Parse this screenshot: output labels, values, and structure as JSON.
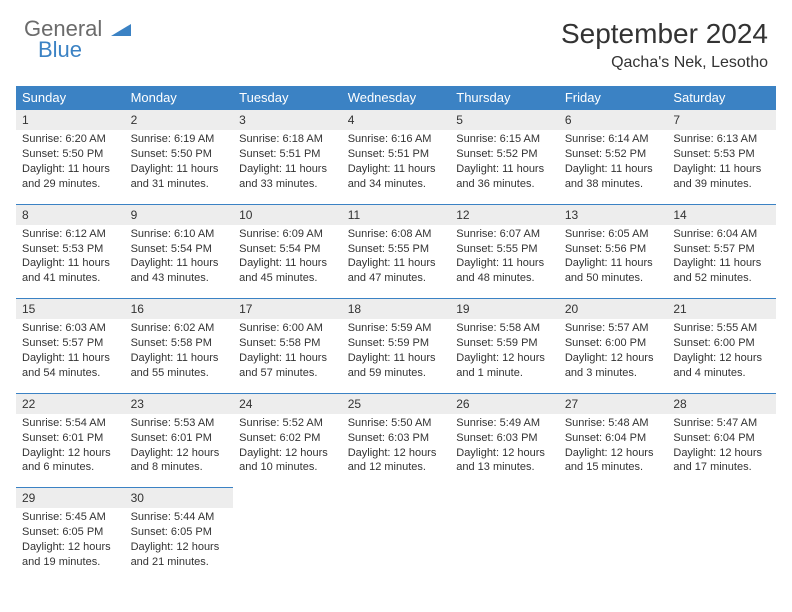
{
  "logo": {
    "text1": "General",
    "text2": "Blue"
  },
  "title": "September 2024",
  "location": "Qacha's Nek, Lesotho",
  "colors": {
    "header_bg": "#3b82c4",
    "header_text": "#ffffff",
    "daynum_bg": "#ededed",
    "text": "#333333",
    "logo_gray": "#6b6b6b",
    "logo_blue": "#3b82c4"
  },
  "weekdays": [
    "Sunday",
    "Monday",
    "Tuesday",
    "Wednesday",
    "Thursday",
    "Friday",
    "Saturday"
  ],
  "weeks": [
    [
      {
        "n": "1",
        "sr": "Sunrise: 6:20 AM",
        "ss": "Sunset: 5:50 PM",
        "d1": "Daylight: 11 hours",
        "d2": "and 29 minutes."
      },
      {
        "n": "2",
        "sr": "Sunrise: 6:19 AM",
        "ss": "Sunset: 5:50 PM",
        "d1": "Daylight: 11 hours",
        "d2": "and 31 minutes."
      },
      {
        "n": "3",
        "sr": "Sunrise: 6:18 AM",
        "ss": "Sunset: 5:51 PM",
        "d1": "Daylight: 11 hours",
        "d2": "and 33 minutes."
      },
      {
        "n": "4",
        "sr": "Sunrise: 6:16 AM",
        "ss": "Sunset: 5:51 PM",
        "d1": "Daylight: 11 hours",
        "d2": "and 34 minutes."
      },
      {
        "n": "5",
        "sr": "Sunrise: 6:15 AM",
        "ss": "Sunset: 5:52 PM",
        "d1": "Daylight: 11 hours",
        "d2": "and 36 minutes."
      },
      {
        "n": "6",
        "sr": "Sunrise: 6:14 AM",
        "ss": "Sunset: 5:52 PM",
        "d1": "Daylight: 11 hours",
        "d2": "and 38 minutes."
      },
      {
        "n": "7",
        "sr": "Sunrise: 6:13 AM",
        "ss": "Sunset: 5:53 PM",
        "d1": "Daylight: 11 hours",
        "d2": "and 39 minutes."
      }
    ],
    [
      {
        "n": "8",
        "sr": "Sunrise: 6:12 AM",
        "ss": "Sunset: 5:53 PM",
        "d1": "Daylight: 11 hours",
        "d2": "and 41 minutes."
      },
      {
        "n": "9",
        "sr": "Sunrise: 6:10 AM",
        "ss": "Sunset: 5:54 PM",
        "d1": "Daylight: 11 hours",
        "d2": "and 43 minutes."
      },
      {
        "n": "10",
        "sr": "Sunrise: 6:09 AM",
        "ss": "Sunset: 5:54 PM",
        "d1": "Daylight: 11 hours",
        "d2": "and 45 minutes."
      },
      {
        "n": "11",
        "sr": "Sunrise: 6:08 AM",
        "ss": "Sunset: 5:55 PM",
        "d1": "Daylight: 11 hours",
        "d2": "and 47 minutes."
      },
      {
        "n": "12",
        "sr": "Sunrise: 6:07 AM",
        "ss": "Sunset: 5:55 PM",
        "d1": "Daylight: 11 hours",
        "d2": "and 48 minutes."
      },
      {
        "n": "13",
        "sr": "Sunrise: 6:05 AM",
        "ss": "Sunset: 5:56 PM",
        "d1": "Daylight: 11 hours",
        "d2": "and 50 minutes."
      },
      {
        "n": "14",
        "sr": "Sunrise: 6:04 AM",
        "ss": "Sunset: 5:57 PM",
        "d1": "Daylight: 11 hours",
        "d2": "and 52 minutes."
      }
    ],
    [
      {
        "n": "15",
        "sr": "Sunrise: 6:03 AM",
        "ss": "Sunset: 5:57 PM",
        "d1": "Daylight: 11 hours",
        "d2": "and 54 minutes."
      },
      {
        "n": "16",
        "sr": "Sunrise: 6:02 AM",
        "ss": "Sunset: 5:58 PM",
        "d1": "Daylight: 11 hours",
        "d2": "and 55 minutes."
      },
      {
        "n": "17",
        "sr": "Sunrise: 6:00 AM",
        "ss": "Sunset: 5:58 PM",
        "d1": "Daylight: 11 hours",
        "d2": "and 57 minutes."
      },
      {
        "n": "18",
        "sr": "Sunrise: 5:59 AM",
        "ss": "Sunset: 5:59 PM",
        "d1": "Daylight: 11 hours",
        "d2": "and 59 minutes."
      },
      {
        "n": "19",
        "sr": "Sunrise: 5:58 AM",
        "ss": "Sunset: 5:59 PM",
        "d1": "Daylight: 12 hours",
        "d2": "and 1 minute."
      },
      {
        "n": "20",
        "sr": "Sunrise: 5:57 AM",
        "ss": "Sunset: 6:00 PM",
        "d1": "Daylight: 12 hours",
        "d2": "and 3 minutes."
      },
      {
        "n": "21",
        "sr": "Sunrise: 5:55 AM",
        "ss": "Sunset: 6:00 PM",
        "d1": "Daylight: 12 hours",
        "d2": "and 4 minutes."
      }
    ],
    [
      {
        "n": "22",
        "sr": "Sunrise: 5:54 AM",
        "ss": "Sunset: 6:01 PM",
        "d1": "Daylight: 12 hours",
        "d2": "and 6 minutes."
      },
      {
        "n": "23",
        "sr": "Sunrise: 5:53 AM",
        "ss": "Sunset: 6:01 PM",
        "d1": "Daylight: 12 hours",
        "d2": "and 8 minutes."
      },
      {
        "n": "24",
        "sr": "Sunrise: 5:52 AM",
        "ss": "Sunset: 6:02 PM",
        "d1": "Daylight: 12 hours",
        "d2": "and 10 minutes."
      },
      {
        "n": "25",
        "sr": "Sunrise: 5:50 AM",
        "ss": "Sunset: 6:03 PM",
        "d1": "Daylight: 12 hours",
        "d2": "and 12 minutes."
      },
      {
        "n": "26",
        "sr": "Sunrise: 5:49 AM",
        "ss": "Sunset: 6:03 PM",
        "d1": "Daylight: 12 hours",
        "d2": "and 13 minutes."
      },
      {
        "n": "27",
        "sr": "Sunrise: 5:48 AM",
        "ss": "Sunset: 6:04 PM",
        "d1": "Daylight: 12 hours",
        "d2": "and 15 minutes."
      },
      {
        "n": "28",
        "sr": "Sunrise: 5:47 AM",
        "ss": "Sunset: 6:04 PM",
        "d1": "Daylight: 12 hours",
        "d2": "and 17 minutes."
      }
    ],
    [
      {
        "n": "29",
        "sr": "Sunrise: 5:45 AM",
        "ss": "Sunset: 6:05 PM",
        "d1": "Daylight: 12 hours",
        "d2": "and 19 minutes."
      },
      {
        "n": "30",
        "sr": "Sunrise: 5:44 AM",
        "ss": "Sunset: 6:05 PM",
        "d1": "Daylight: 12 hours",
        "d2": "and 21 minutes."
      },
      null,
      null,
      null,
      null,
      null
    ]
  ]
}
